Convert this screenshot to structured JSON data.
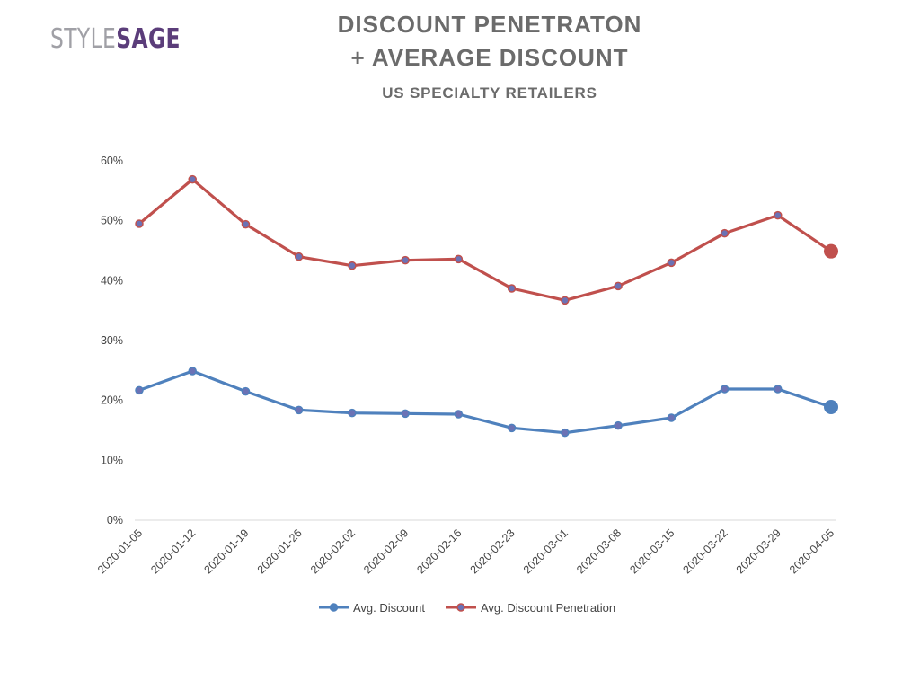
{
  "logo": {
    "part1": "STYLE",
    "part2": "SAGE"
  },
  "header": {
    "title_line1": "DISCOUNT PENETRATON",
    "title_line2": "+ AVERAGE DISCOUNT",
    "subtitle": "US SPECIALTY RETAILERS"
  },
  "chart_data": {
    "type": "line",
    "title": "DISCOUNT PENETRATON + AVERAGE DISCOUNT",
    "subtitle": "US SPECIALTY RETAILERS",
    "xlabel": "",
    "ylabel": "",
    "ylim": [
      0,
      0.6
    ],
    "y_ticks": [
      0,
      0.1,
      0.2,
      0.3,
      0.4,
      0.5,
      0.6
    ],
    "y_tick_labels": [
      "0%",
      "10%",
      "20%",
      "30%",
      "40%",
      "50%",
      "60%"
    ],
    "grid": false,
    "legend_position": "bottom",
    "categories": [
      "2020-01-05",
      "2020-01-12",
      "2020-01-19",
      "2020-01-26",
      "2020-02-02",
      "2020-02-09",
      "2020-02-16",
      "2020-02-23",
      "2020-03-01",
      "2020-03-08",
      "2020-03-15",
      "2020-03-22",
      "2020-03-29",
      "2020-04-05"
    ],
    "series": [
      {
        "name": "Avg. Discount",
        "color": "#4f81bd",
        "values": [
          0.217,
          0.249,
          0.215,
          0.184,
          0.179,
          0.178,
          0.177,
          0.154,
          0.146,
          0.158,
          0.171,
          0.219,
          0.219,
          0.189
        ]
      },
      {
        "name": "Avg. Discount Penetration",
        "color": "#c0504d",
        "values": [
          0.495,
          0.569,
          0.494,
          0.44,
          0.425,
          0.434,
          0.436,
          0.387,
          0.367,
          0.391,
          0.43,
          0.479,
          0.509,
          0.449
        ]
      }
    ]
  }
}
